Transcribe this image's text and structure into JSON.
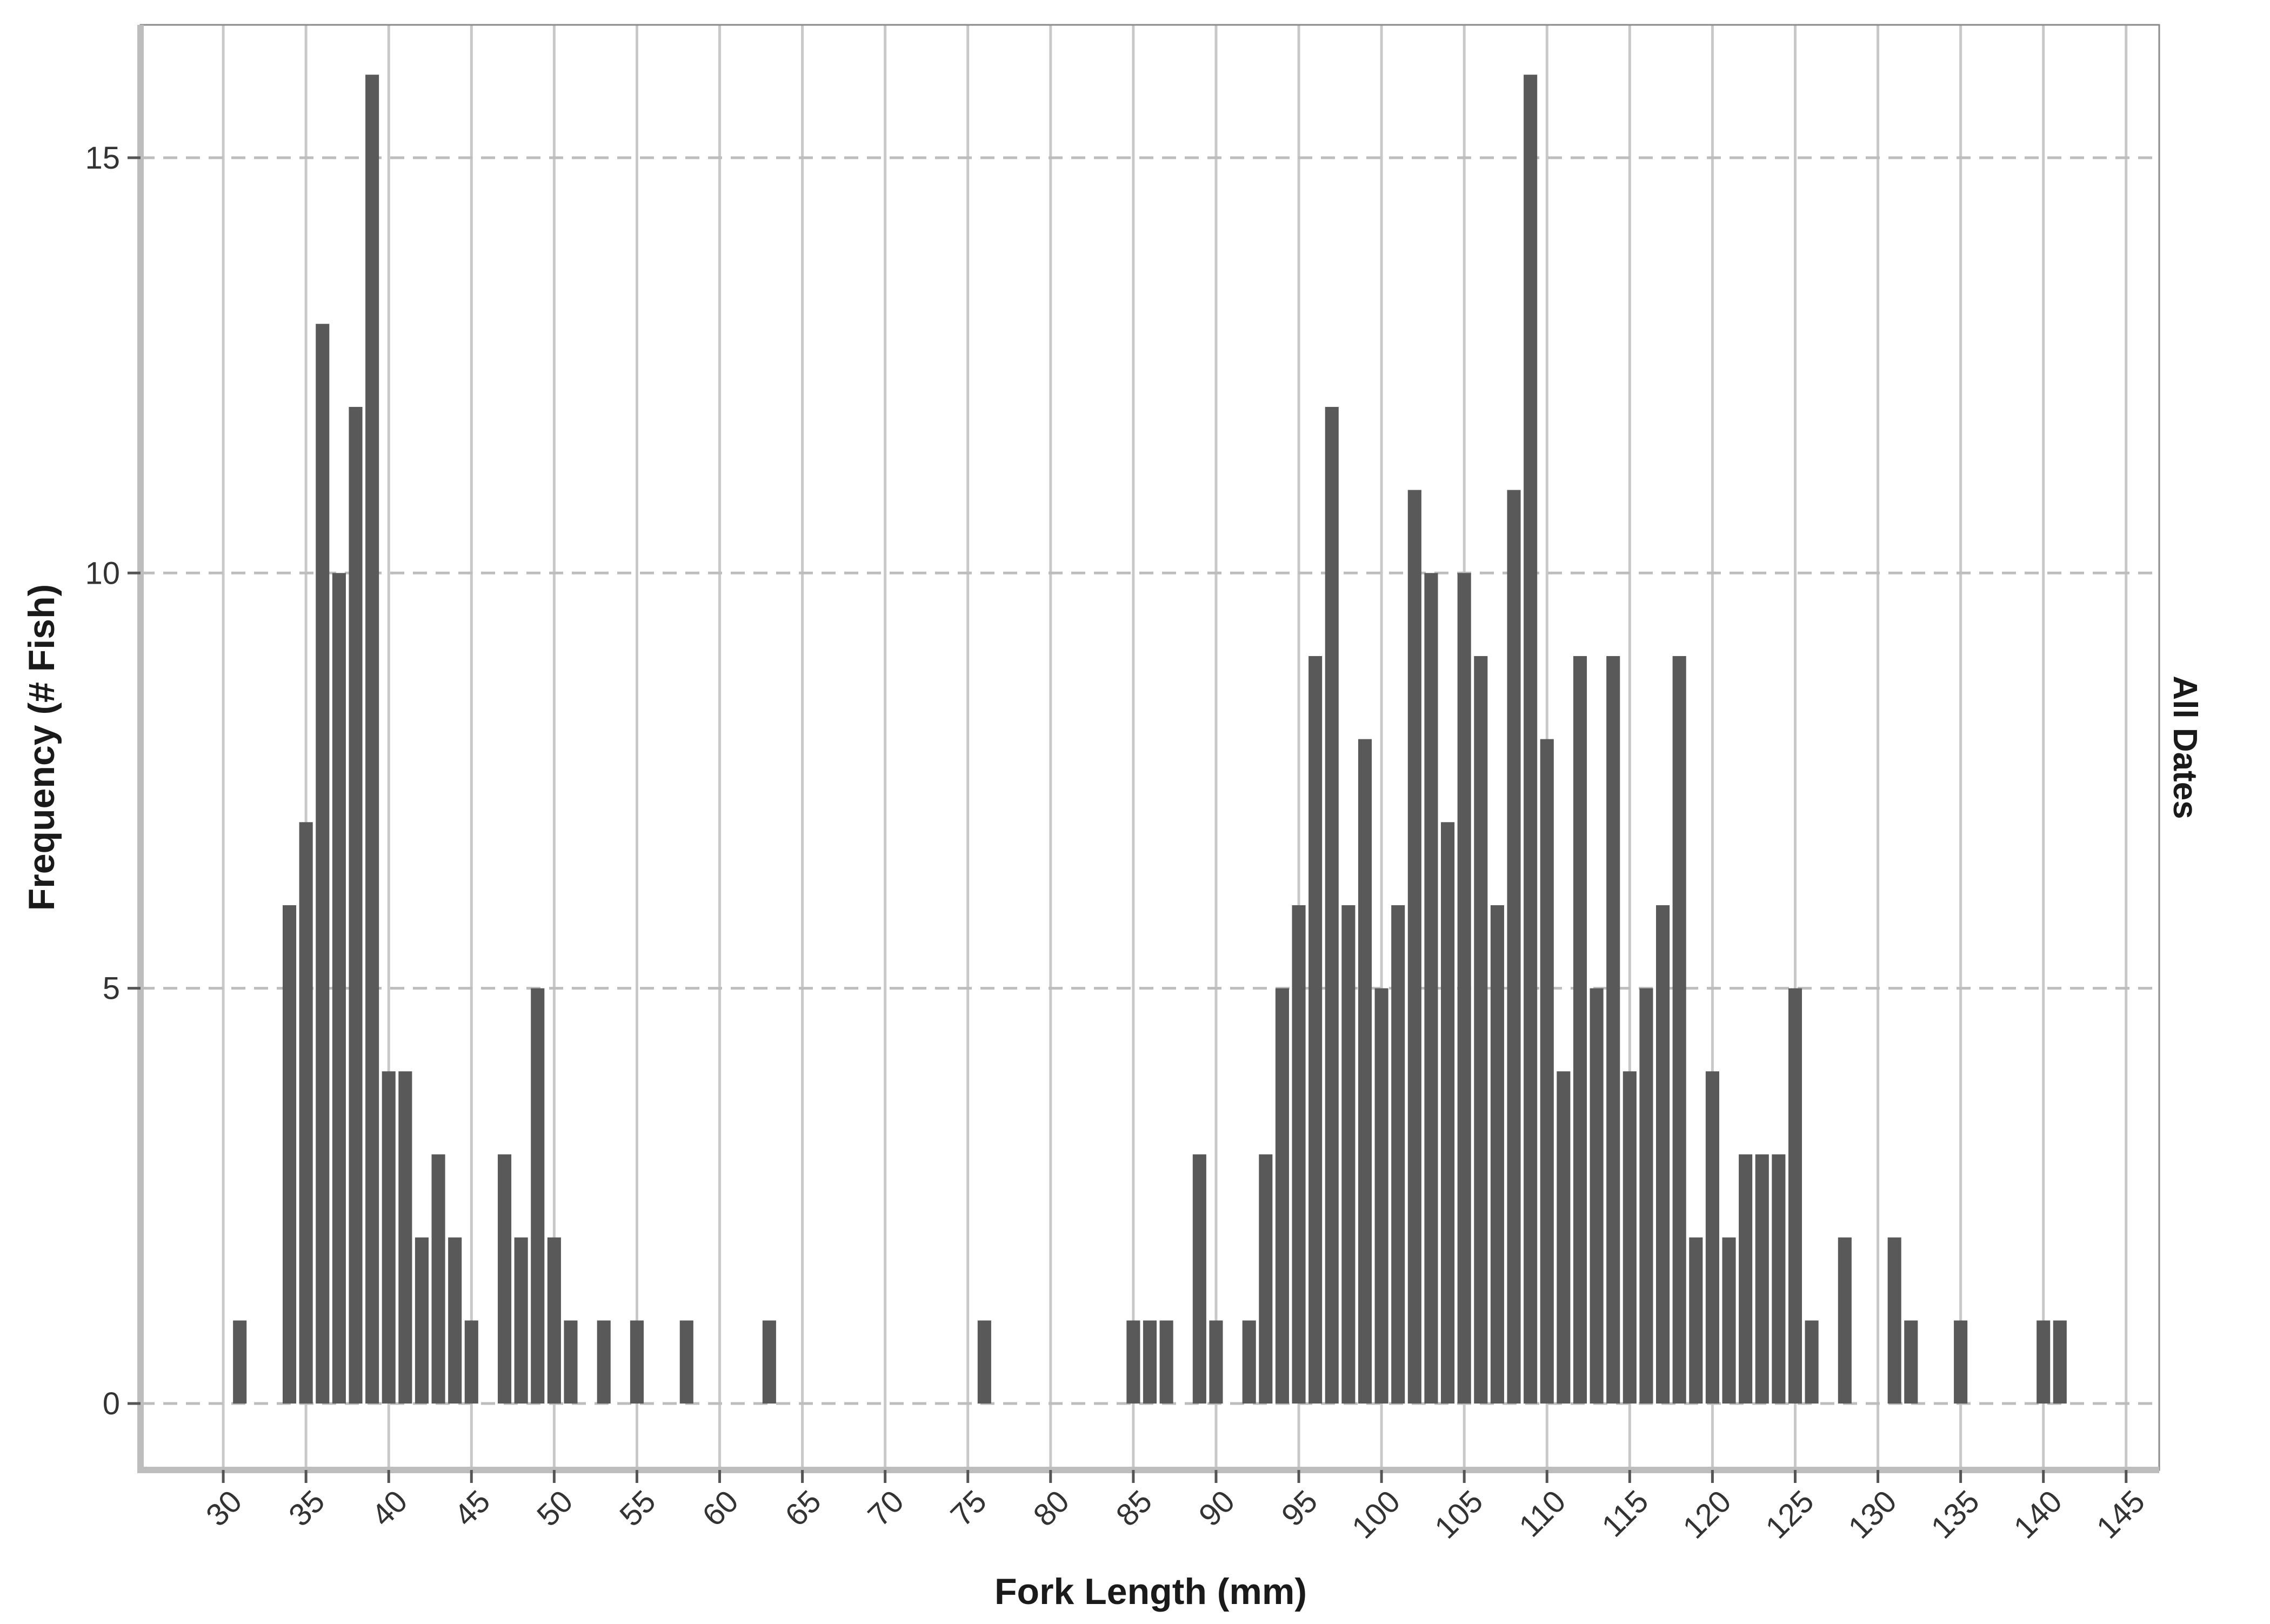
{
  "chart_data": {
    "type": "bar",
    "title": "",
    "xlabel": "Fork Length (mm)",
    "ylabel": "Frequency (# Fish)",
    "facet_label": "All Dates",
    "xlim": [
      25,
      147
    ],
    "ylim": [
      -0.8,
      16.6
    ],
    "xticks": [
      30,
      35,
      40,
      45,
      50,
      55,
      60,
      65,
      70,
      75,
      80,
      85,
      90,
      95,
      100,
      105,
      110,
      115,
      120,
      125,
      130,
      135,
      140,
      145
    ],
    "yticks": [
      0,
      5,
      10,
      15
    ],
    "grid": {
      "vertical": "solid",
      "horizontal": "dashed"
    },
    "bar_color": "#595959",
    "points": [
      [
        31,
        1
      ],
      [
        34,
        6
      ],
      [
        35,
        7
      ],
      [
        36,
        13
      ],
      [
        37,
        10
      ],
      [
        38,
        12
      ],
      [
        39,
        16
      ],
      [
        40,
        4
      ],
      [
        41,
        4
      ],
      [
        42,
        2
      ],
      [
        43,
        3
      ],
      [
        44,
        2
      ],
      [
        45,
        1
      ],
      [
        47,
        3
      ],
      [
        48,
        2
      ],
      [
        49,
        5
      ],
      [
        50,
        2
      ],
      [
        51,
        1
      ],
      [
        53,
        1
      ],
      [
        55,
        1
      ],
      [
        58,
        1
      ],
      [
        63,
        1
      ],
      [
        76,
        1
      ],
      [
        85,
        1
      ],
      [
        86,
        1
      ],
      [
        87,
        1
      ],
      [
        89,
        3
      ],
      [
        90,
        1
      ],
      [
        92,
        1
      ],
      [
        93,
        3
      ],
      [
        94,
        5
      ],
      [
        95,
        6
      ],
      [
        96,
        9
      ],
      [
        97,
        12
      ],
      [
        98,
        6
      ],
      [
        99,
        8
      ],
      [
        100,
        5
      ],
      [
        101,
        6
      ],
      [
        102,
        11
      ],
      [
        103,
        10
      ],
      [
        104,
        7
      ],
      [
        105,
        10
      ],
      [
        106,
        9
      ],
      [
        107,
        6
      ],
      [
        108,
        11
      ],
      [
        109,
        16
      ],
      [
        110,
        8
      ],
      [
        111,
        4
      ],
      [
        112,
        9
      ],
      [
        113,
        5
      ],
      [
        114,
        9
      ],
      [
        115,
        4
      ],
      [
        116,
        5
      ],
      [
        117,
        6
      ],
      [
        118,
        9
      ],
      [
        119,
        2
      ],
      [
        120,
        4
      ],
      [
        121,
        2
      ],
      [
        122,
        3
      ],
      [
        123,
        3
      ],
      [
        124,
        3
      ],
      [
        125,
        5
      ],
      [
        126,
        1
      ],
      [
        128,
        2
      ],
      [
        131,
        2
      ],
      [
        132,
        1
      ],
      [
        135,
        1
      ],
      [
        140,
        1
      ],
      [
        141,
        1
      ]
    ]
  }
}
